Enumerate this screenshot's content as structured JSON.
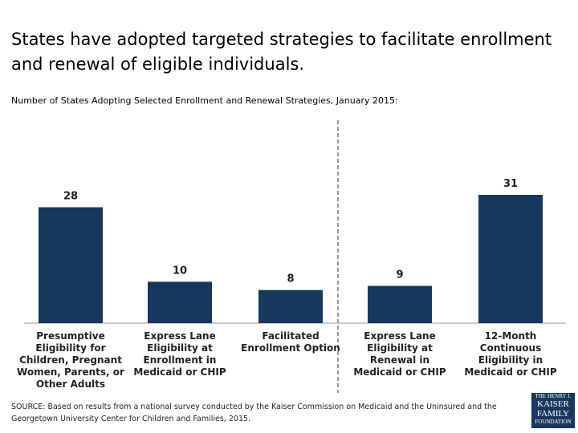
{
  "chart_data": {
    "type": "bar",
    "title": "States have adopted targeted strategies to facilitate enrollment and renewal of eligible individuals.",
    "subtitle": "Number of States Adopting Selected Enrollment and Renewal Strategies, January 2015:",
    "categories": [
      "Presumptive Eligibility for Children, Pregnant Women, Parents, or Other Adults",
      "Express Lane Eligibility at Enrollment in Medicaid or CHIP",
      "Facilitated Enrollment Option",
      "Express Lane Eligibility at Renewal in Medicaid or CHIP",
      "12-Month Continuous Eligibility in Medicaid or CHIP"
    ],
    "values": [
      28,
      10,
      8,
      9,
      31
    ],
    "color": "#17375e",
    "source": "SOURCE: Based on results from a national survey conducted by the Kaiser Commission on Medicaid and the Uninsured and the Georgetown University Center for Children and Families, 2015.",
    "logo": [
      "THE HENRY J.",
      "KAISER",
      "FAMILY",
      "FOUNDATION"
    ]
  }
}
